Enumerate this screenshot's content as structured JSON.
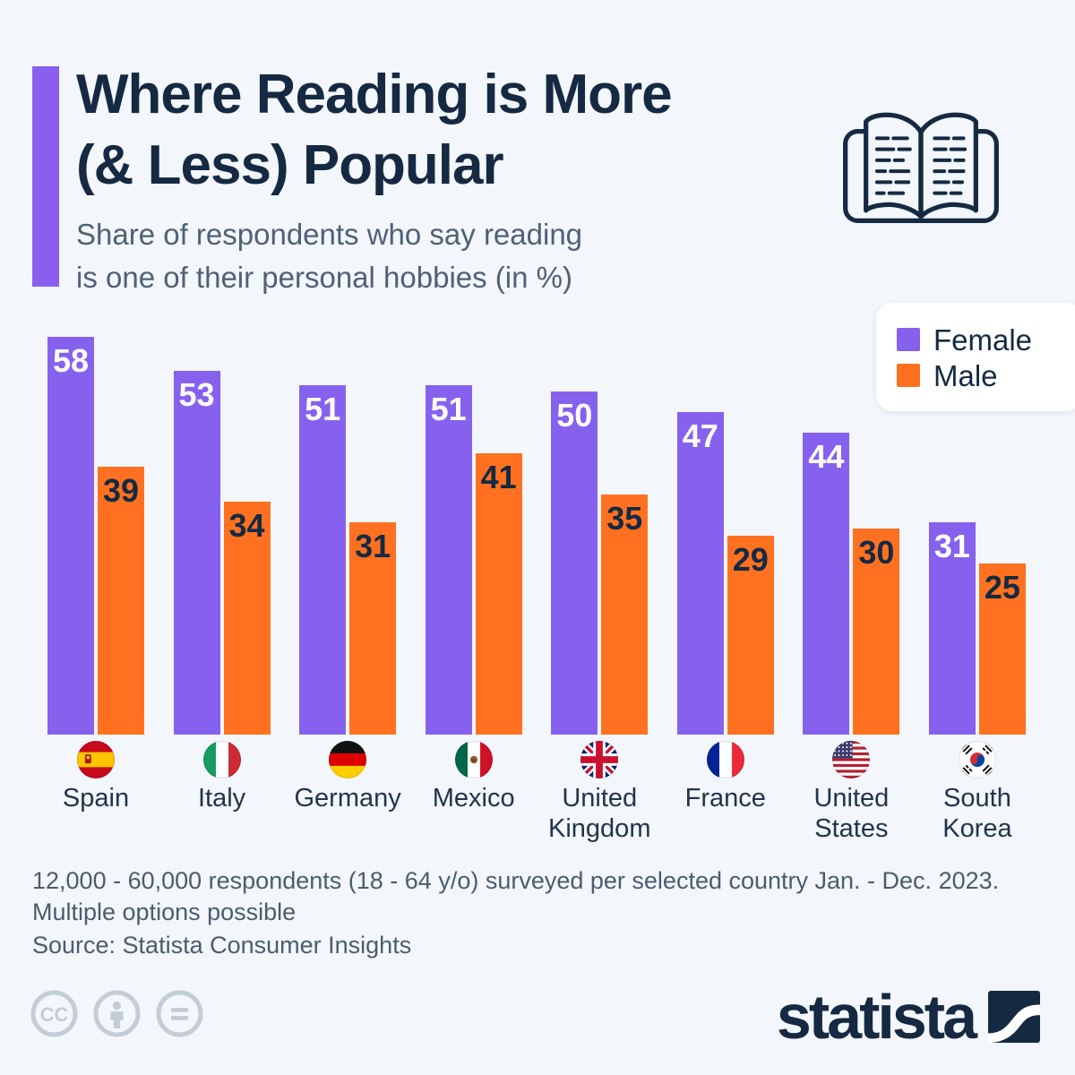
{
  "header": {
    "title_line1": "Where Reading is More",
    "title_line2": "(& Less) Popular",
    "subtitle_line1": "Share of respondents who say reading",
    "subtitle_line2": "is one of their personal hobbies (in %)"
  },
  "legend": {
    "items": [
      {
        "label": "Female",
        "color": "#8661EE"
      },
      {
        "label": "Male",
        "color": "#FF7120"
      }
    ]
  },
  "chart_data": {
    "type": "bar",
    "title": "Where Reading is More (& Less) Popular",
    "subtitle": "Share of respondents who say reading is one of their personal hobbies (in %)",
    "categories": [
      "Spain",
      "Italy",
      "Germany",
      "Mexico",
      "United Kingdom",
      "France",
      "United States",
      "South Korea"
    ],
    "flags": [
      "es",
      "it",
      "de",
      "mx",
      "gb",
      "fr",
      "us",
      "kr"
    ],
    "series": [
      {
        "name": "Female",
        "color": "#8661EE",
        "values": [
          58,
          53,
          51,
          51,
          50,
          47,
          44,
          31
        ]
      },
      {
        "name": "Male",
        "color": "#FF7120",
        "values": [
          39,
          34,
          31,
          41,
          35,
          29,
          30,
          25
        ]
      }
    ],
    "value_labels": "inside-top",
    "value_label_colors": {
      "Female": "#FFFFFF",
      "Male": "#152A42"
    },
    "ylim": [
      0,
      60
    ],
    "grid": false,
    "legend_position": "top-right"
  },
  "footer": {
    "note_line1": "12,000 - 60,000 respondents (18 - 64 y/o) surveyed per selected country Jan. - Dec. 2023.",
    "note_line2": "Multiple options possible",
    "source": "Source: Statista Consumer Insights",
    "brand": "statista"
  },
  "colors": {
    "background": "#F3F6FA",
    "navy": "#152A42",
    "purple": "#8661EE",
    "orange": "#FF7120",
    "subtitle_gray": "#4E6177",
    "note_gray": "#4A5C70",
    "cc_gray": "#C3CDD7"
  }
}
